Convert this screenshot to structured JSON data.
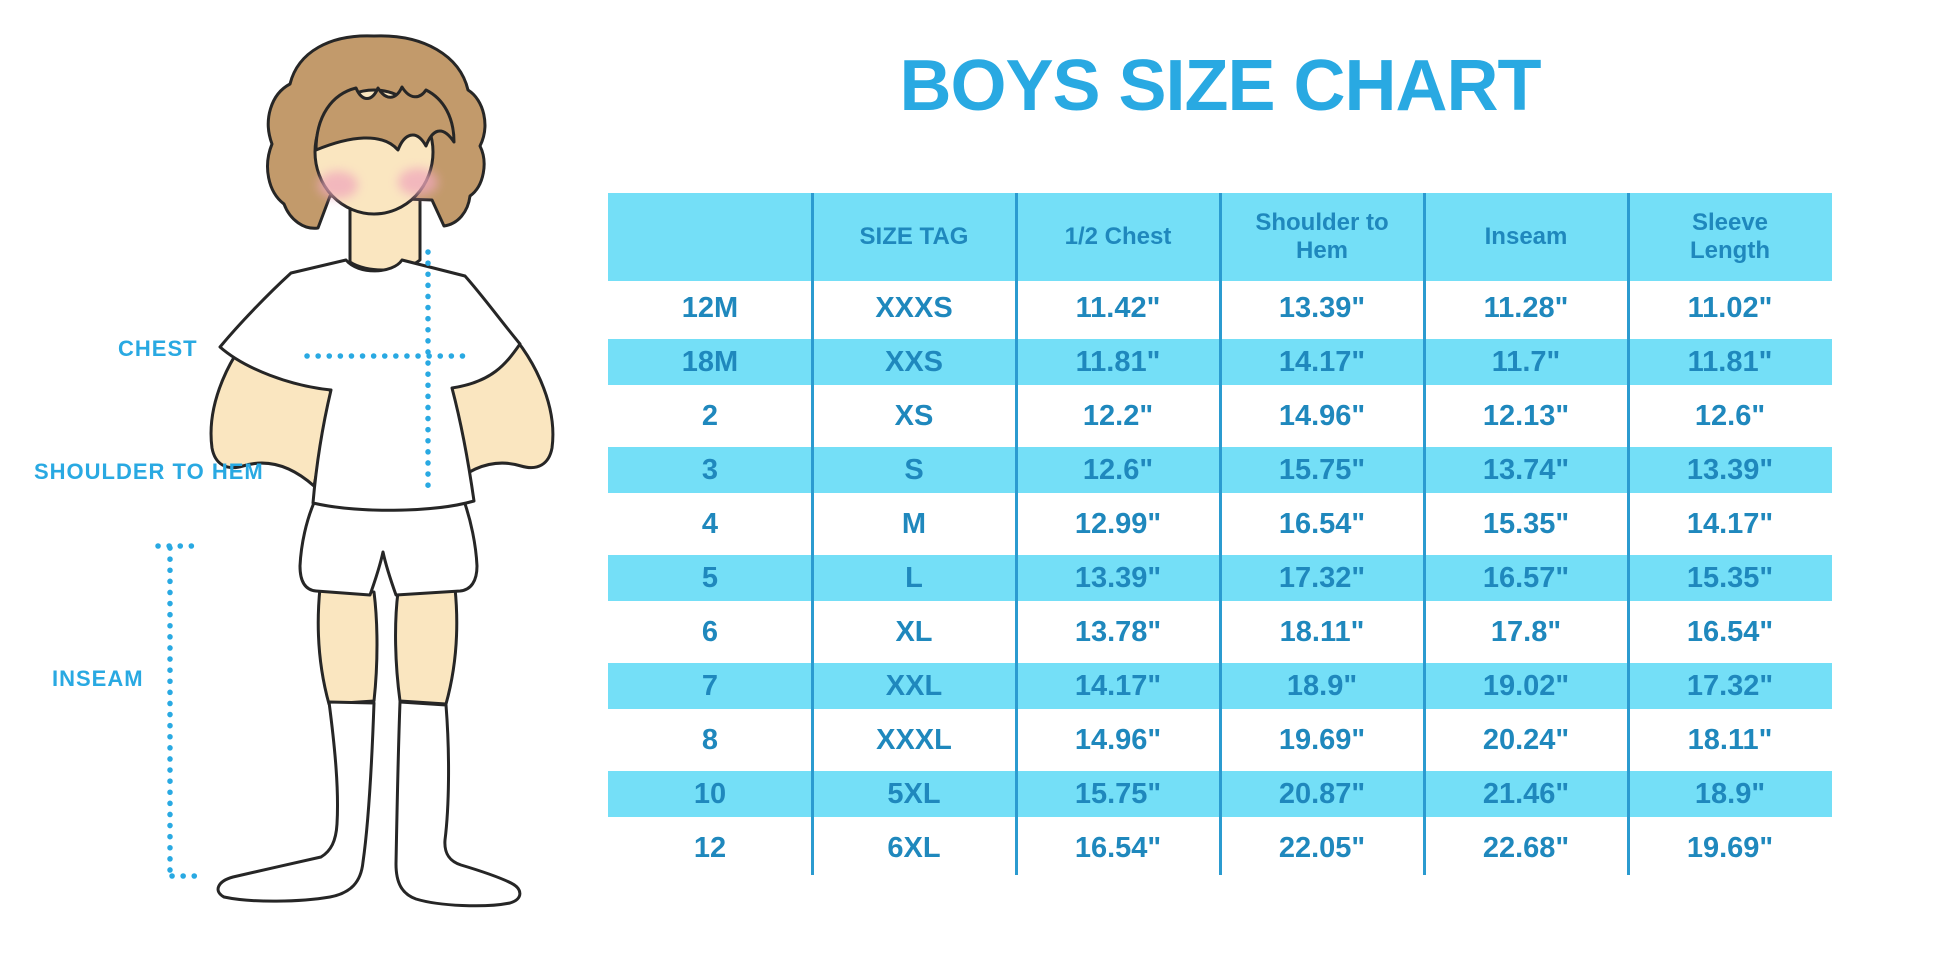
{
  "chart_data": {
    "type": "table",
    "title": "BOYS SIZE CHART",
    "columns": [
      "",
      "SIZE TAG",
      "1/2 Chest",
      "Shoulder to Hem",
      "Inseam",
      "Sleeve Length"
    ],
    "rows": [
      [
        "12M",
        "XXXS",
        "11.42\"",
        "13.39\"",
        "11.28\"",
        "11.02\""
      ],
      [
        "18M",
        "XXS",
        "11.81\"",
        "14.17\"",
        "11.7\"",
        "11.81\""
      ],
      [
        "2",
        "XS",
        "12.2\"",
        "14.96\"",
        "12.13\"",
        "12.6\""
      ],
      [
        "3",
        "S",
        "12.6\"",
        "15.75\"",
        "13.74\"",
        "13.39\""
      ],
      [
        "4",
        "M",
        "12.99\"",
        "16.54\"",
        "15.35\"",
        "14.17\""
      ],
      [
        "5",
        "L",
        "13.39\"",
        "17.32\"",
        "16.57\"",
        "15.35\""
      ],
      [
        "6",
        "XL",
        "13.78\"",
        "18.11\"",
        "17.8\"",
        "16.54\""
      ],
      [
        "7",
        "XXL",
        "14.17\"",
        "18.9\"",
        "19.02\"",
        "17.32\""
      ],
      [
        "8",
        "XXXL",
        "14.96\"",
        "19.69\"",
        "20.24\"",
        "18.11\""
      ],
      [
        "10",
        "5XL",
        "15.75\"",
        "20.87\"",
        "21.46\"",
        "18.9\""
      ],
      [
        "12",
        "6XL",
        "16.54\"",
        "22.05\"",
        "22.68\"",
        "19.69\""
      ]
    ],
    "shaded_row_indexes": [
      1,
      3,
      5,
      7,
      9
    ],
    "layout": {
      "header_shaded": true,
      "row_shading": "alternating",
      "grid": "vertical-separators-only"
    }
  },
  "figure": {
    "labels": {
      "chest": "CHEST",
      "shoulder_to_hem": "SHOULDER TO HEM",
      "inseam": "INSEAM"
    }
  },
  "colors": {
    "accent_blue": "#29A9E2",
    "band_cyan": "#74DFF7",
    "separator_blue": "#2B9BD0",
    "table_text_blue": "#1F88BD",
    "skin": "#FAE6C0",
    "hair_brown": "#C29A6B",
    "cheek_pink": "#F0A8BC",
    "outline": "#262626",
    "background": "#FFFFFF"
  }
}
